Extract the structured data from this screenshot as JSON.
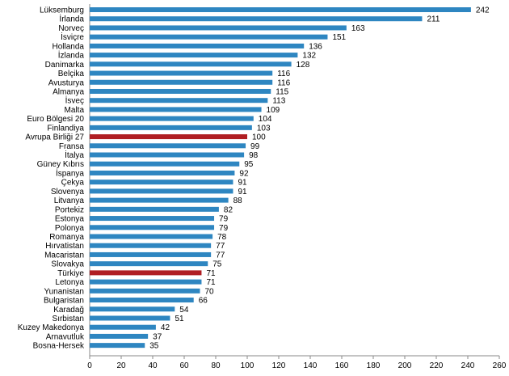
{
  "chart_data": {
    "type": "bar",
    "orientation": "horizontal",
    "categories": [
      "Lüksemburg",
      "İrlanda",
      "Norveç",
      "İsviçre",
      "Hollanda",
      "İzlanda",
      "Danimarka",
      "Belçika",
      "Avusturya",
      "Almanya",
      "İsveç",
      "Malta",
      "Euro Bölgesi 20",
      "Finlandiya",
      "Avrupa Birliği 27",
      "Fransa",
      "İtalya",
      "Güney Kıbrıs",
      "İspanya",
      "Çekya",
      "Slovenya",
      "Litvanya",
      "Portekiz",
      "Estonya",
      "Polonya",
      "Romanya",
      "Hırvatistan",
      "Macaristan",
      "Slovakya",
      "Türkiye",
      "Letonya",
      "Yunanistan",
      "Bulgaristan",
      "Karadağ",
      "Sırbistan",
      "Kuzey Makedonya",
      "Arnavutluk",
      "Bosna-Hersek"
    ],
    "values": [
      242,
      211,
      163,
      151,
      136,
      132,
      128,
      116,
      116,
      115,
      113,
      109,
      104,
      103,
      100,
      99,
      98,
      95,
      92,
      91,
      91,
      88,
      82,
      79,
      79,
      78,
      77,
      77,
      75,
      71,
      71,
      70,
      66,
      54,
      51,
      42,
      37,
      35
    ],
    "xlim": [
      0,
      260
    ],
    "xticks": [
      0,
      20,
      40,
      60,
      80,
      100,
      120,
      140,
      160,
      180,
      200,
      220,
      240,
      260
    ],
    "highlighted": [
      "Avrupa Birliği 27",
      "Türkiye"
    ],
    "grid": false,
    "legend": "none",
    "colors": {
      "bar": "#2e86c1",
      "highlight": "#b01e23",
      "axis": "#888888"
    }
  }
}
